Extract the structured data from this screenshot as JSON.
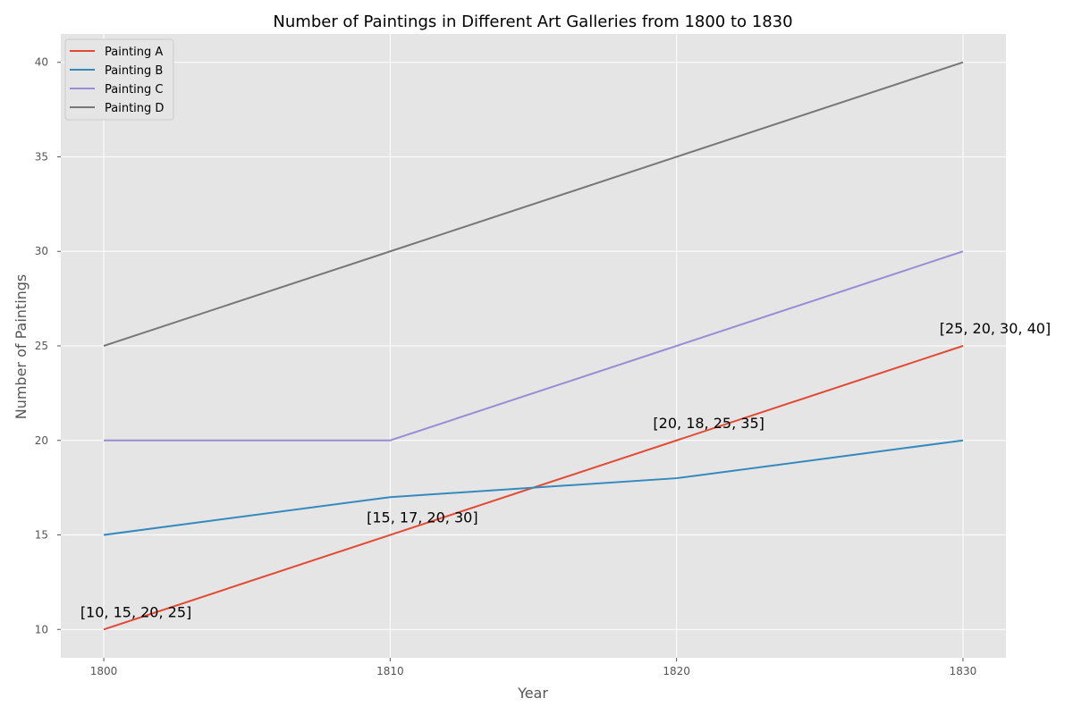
{
  "chart_data": {
    "type": "line",
    "title": "Number of Paintings in Different Art Galleries from 1800 to 1830",
    "xlabel": "Year",
    "ylabel": "Number of Paintings",
    "x": [
      1800,
      1810,
      1820,
      1830
    ],
    "xticks": [
      "1800",
      "1810",
      "1820",
      "1830"
    ],
    "yticks": [
      "10",
      "15",
      "20",
      "25",
      "30",
      "35",
      "40"
    ],
    "xlim": [
      1798.5,
      1831.5
    ],
    "ylim": [
      8.5,
      41.5
    ],
    "grid": true,
    "legend_position": "top-left",
    "series": [
      {
        "name": "Painting A",
        "values": [
          10,
          15,
          20,
          25
        ],
        "color": "#E24A33"
      },
      {
        "name": "Painting B",
        "values": [
          15,
          17,
          18,
          20
        ],
        "color": "#348ABD"
      },
      {
        "name": "Painting C",
        "values": [
          20,
          20,
          25,
          30
        ],
        "color": "#988ED5"
      },
      {
        "name": "Painting D",
        "values": [
          25,
          30,
          35,
          40
        ],
        "color": "#777777"
      }
    ],
    "annotations": [
      {
        "text": "[10, 15, 20, 25]",
        "x": 1800,
        "y": 10
      },
      {
        "text": "[15, 17, 20, 30]",
        "x": 1810,
        "y": 15
      },
      {
        "text": "[20, 18, 25, 35]",
        "x": 1820,
        "y": 20
      },
      {
        "text": "[25, 20, 30, 40]",
        "x": 1830,
        "y": 25
      }
    ],
    "colors": {
      "background": "#E5E5E5",
      "grid": "#FFFFFF"
    }
  }
}
